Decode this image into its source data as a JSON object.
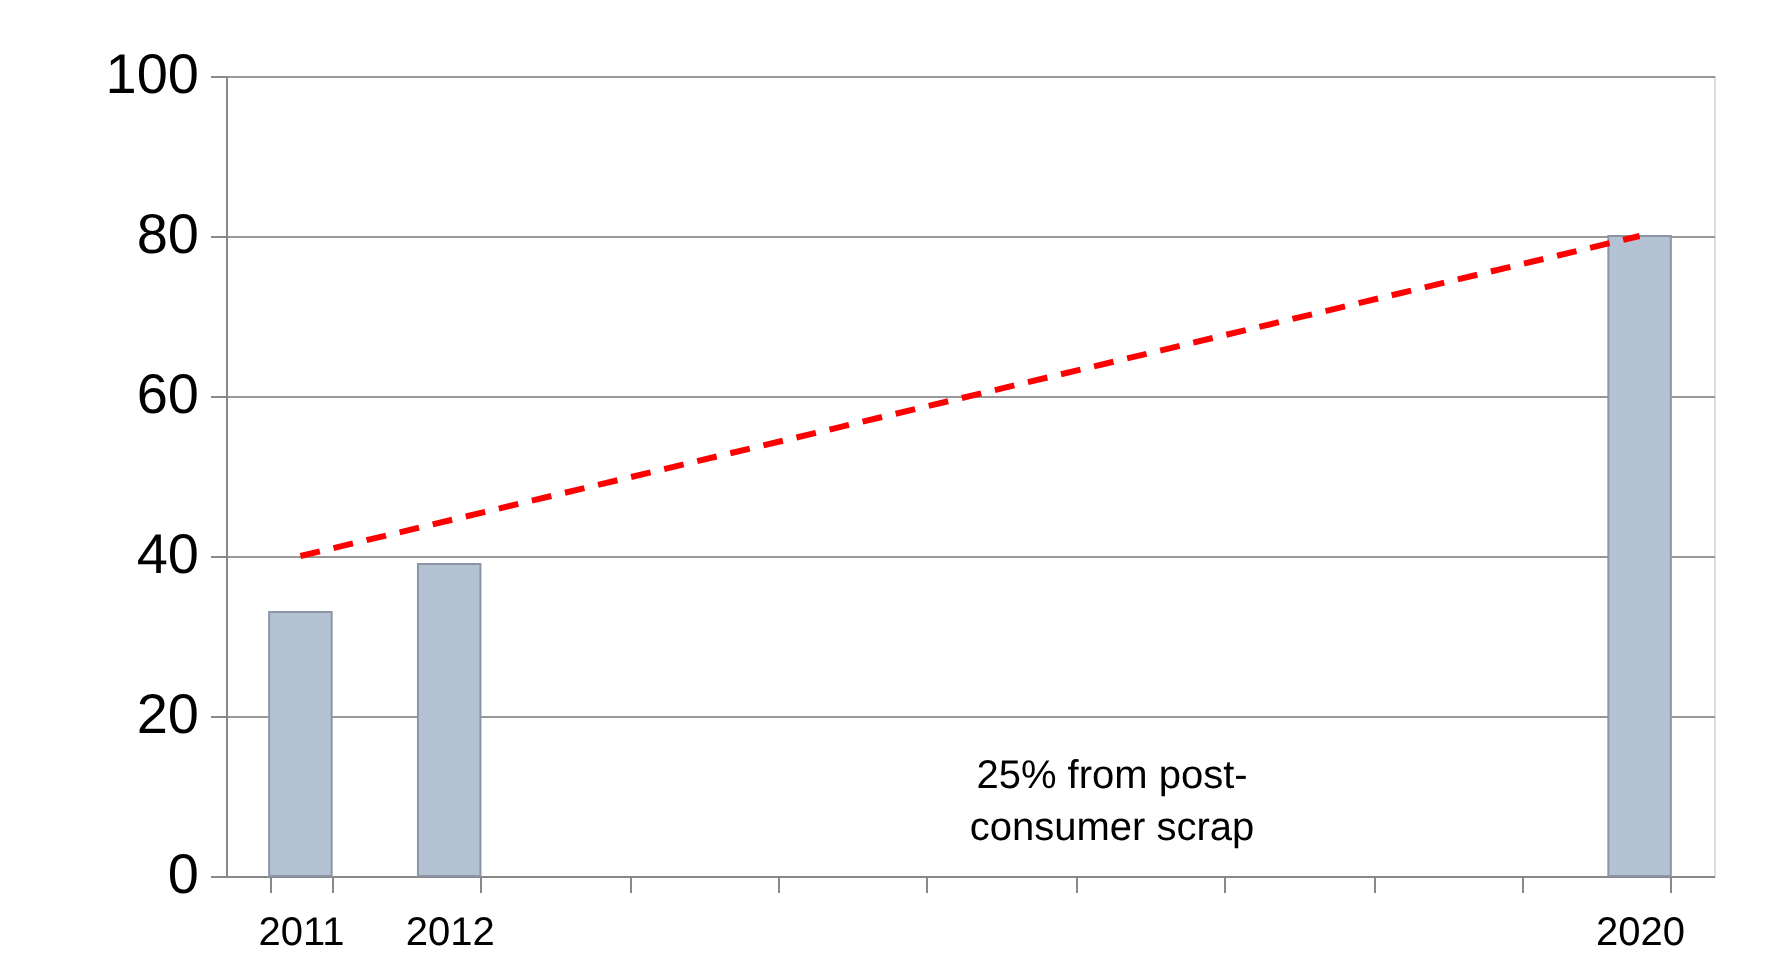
{
  "chart_data": {
    "type": "bar",
    "categories": [
      "2011",
      "2012",
      null,
      null,
      null,
      null,
      null,
      null,
      null,
      "2020"
    ],
    "series": [
      {
        "color": "#b4c2d4",
        "values": [
          33,
          39,
          null,
          null,
          null,
          null,
          null,
          null,
          null,
          80
        ]
      },
      {
        "type": "line",
        "color": "#ff0000",
        "values": [
          40,
          null,
          null,
          null,
          null,
          null,
          null,
          null,
          null,
          80
        ],
        "line_style": "dashed",
        "marker": "none"
      }
    ],
    "ylim": [
      0,
      100
    ],
    "yticks": [
      0,
      20,
      40,
      60,
      80,
      100
    ],
    "grid": "y",
    "legend": false,
    "annotations": [
      "25% from post-consumer scrap"
    ]
  }
}
